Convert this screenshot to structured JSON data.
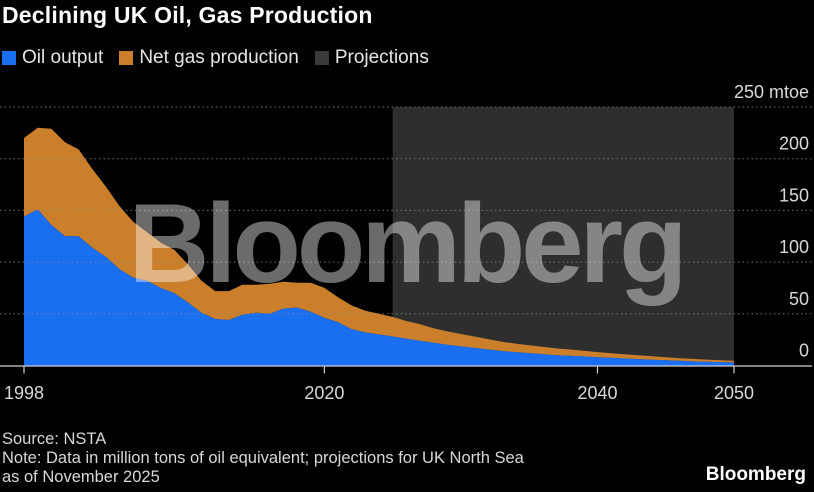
{
  "header": {
    "title": "Declining UK Oil, Gas Production"
  },
  "legend": {
    "oil": "Oil output",
    "gas": "Net gas production",
    "projections": "Projections"
  },
  "colors": {
    "oil": "#1a6ef0",
    "gas": "#cc7f2a",
    "projection_band": "#2e2e2e",
    "watermark": "#ffffff"
  },
  "watermark_text": "Bloomberg",
  "footer": {
    "source": "Source: NSTA",
    "note_line1": "Note: Data in million tons of oil equivalent; projections for UK North Sea",
    "note_line2": "as of November 2025"
  },
  "brand": "Bloomberg",
  "chart_data": {
    "type": "area",
    "stacked": true,
    "title": "Declining UK Oil, Gas Production",
    "ylabel_unit": "mtoe",
    "xlim": [
      1998,
      2051
    ],
    "ylim": [
      0,
      250
    ],
    "x_ticks": [
      1998,
      2020,
      2040,
      2050
    ],
    "y_ticks": [
      0,
      50,
      100,
      150,
      200,
      250
    ],
    "projection_range": [
      2025,
      2050
    ],
    "grid": "horizontal dotted",
    "x": [
      1998,
      1999,
      2000,
      2001,
      2002,
      2003,
      2004,
      2005,
      2006,
      2007,
      2008,
      2009,
      2010,
      2011,
      2012,
      2013,
      2014,
      2015,
      2016,
      2017,
      2018,
      2019,
      2020,
      2021,
      2022,
      2023,
      2024,
      2025,
      2026,
      2027,
      2028,
      2029,
      2030,
      2031,
      2032,
      2033,
      2034,
      2035,
      2036,
      2037,
      2038,
      2039,
      2040,
      2041,
      2042,
      2043,
      2044,
      2045,
      2046,
      2047,
      2048,
      2049,
      2050
    ],
    "series": [
      {
        "name": "Oil output",
        "values": [
          144,
          151,
          136,
          125,
          125,
          114,
          105,
          93,
          85,
          82,
          75,
          70,
          61,
          51,
          45,
          44,
          49,
          51,
          50,
          55,
          56,
          52,
          46,
          42,
          35,
          32,
          30,
          28,
          26,
          24,
          22,
          20,
          18.5,
          17,
          15.5,
          14,
          13,
          12,
          11,
          10,
          9.5,
          8.8,
          8,
          7.4,
          6.8,
          6.2,
          5.6,
          5,
          4.5,
          4,
          3.6,
          3.3,
          3
        ]
      },
      {
        "name": "Net gas production",
        "values": [
          76,
          79,
          93,
          91,
          84,
          76,
          68,
          61,
          54,
          47,
          44,
          42,
          37,
          31,
          27,
          28,
          29,
          27,
          29,
          26,
          24,
          28,
          29,
          24,
          23,
          21,
          20,
          19,
          17,
          16,
          14,
          13,
          12,
          11,
          10,
          9,
          8.2,
          7.5,
          7,
          6.5,
          6,
          5.5,
          5,
          4.5,
          4.1,
          3.7,
          3.3,
          3,
          2.7,
          2.4,
          2.1,
          1.8,
          1.5
        ]
      }
    ]
  }
}
